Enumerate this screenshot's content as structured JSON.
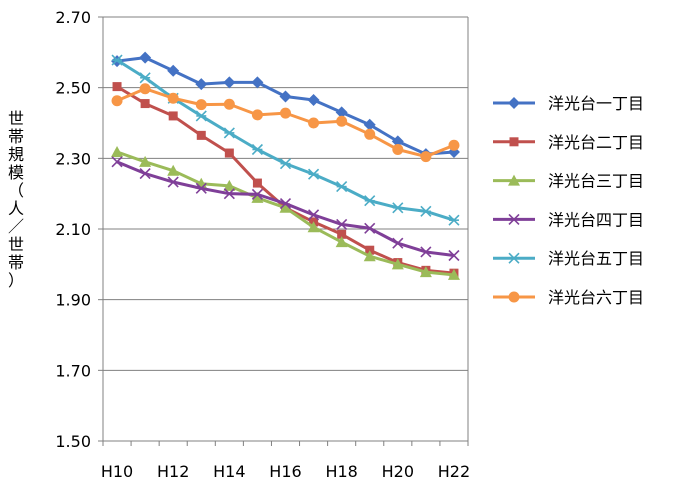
{
  "chart_data": {
    "type": "line",
    "title": "",
    "xlabel": "",
    "ylabel": "世帯規模（人／世帯）",
    "ylim": [
      1.5,
      2.7
    ],
    "y_ticks": [
      "1.50",
      "1.70",
      "1.90",
      "2.10",
      "2.30",
      "2.50",
      "2.70"
    ],
    "y_tick_values": [
      1.5,
      1.7,
      1.9,
      2.1,
      2.3,
      2.5,
      2.7
    ],
    "x": [
      "H10",
      "H11",
      "H12",
      "H13",
      "H14",
      "H15",
      "H16",
      "H17",
      "H18",
      "H19",
      "H20",
      "H21",
      "H22"
    ],
    "x_tick_labels": [
      "H10",
      "",
      "H12",
      "",
      "H14",
      "",
      "H16",
      "",
      "H18",
      "",
      "H20",
      "",
      "H22"
    ],
    "grid": "horizontal",
    "legend_position": "right",
    "series": [
      {
        "name": "洋光台一丁目",
        "color": "#4472C4",
        "marker": "diamond",
        "values": [
          2.575,
          2.585,
          2.548,
          2.51,
          2.515,
          2.515,
          2.475,
          2.465,
          2.43,
          2.395,
          2.348,
          2.312,
          2.318
        ]
      },
      {
        "name": "洋光台二丁目",
        "color": "#C0504D",
        "marker": "square",
        "values": [
          2.503,
          2.455,
          2.42,
          2.365,
          2.315,
          2.23,
          2.16,
          2.12,
          2.085,
          2.04,
          2.005,
          1.983,
          1.975
        ]
      },
      {
        "name": "洋光台三丁目",
        "color": "#9BBB59",
        "marker": "triangle",
        "values": [
          2.318,
          2.29,
          2.265,
          2.228,
          2.222,
          2.188,
          2.16,
          2.105,
          2.063,
          2.023,
          2.0,
          1.978,
          1.97
        ]
      },
      {
        "name": "洋光台四丁目",
        "color": "#7F3F98",
        "marker": "x",
        "values": [
          2.29,
          2.257,
          2.233,
          2.215,
          2.2,
          2.198,
          2.172,
          2.14,
          2.113,
          2.102,
          2.06,
          2.035,
          2.025
        ]
      },
      {
        "name": "洋光台五丁目",
        "color": "#4BACC6",
        "marker": "star",
        "values": [
          2.578,
          2.528,
          2.47,
          2.42,
          2.372,
          2.325,
          2.285,
          2.255,
          2.22,
          2.18,
          2.16,
          2.15,
          2.125
        ]
      },
      {
        "name": "洋光台六丁目",
        "color": "#F79646",
        "marker": "circle",
        "values": [
          2.463,
          2.497,
          2.47,
          2.452,
          2.453,
          2.423,
          2.428,
          2.4,
          2.405,
          2.368,
          2.325,
          2.305,
          2.337
        ]
      }
    ]
  }
}
